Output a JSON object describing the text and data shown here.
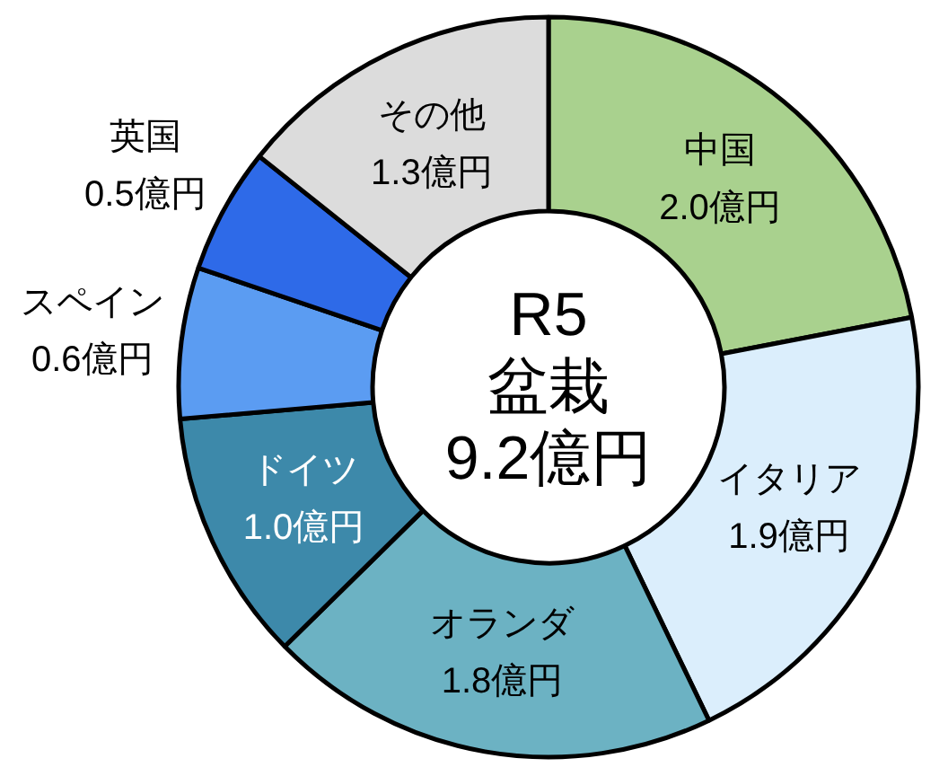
{
  "chart_data": {
    "type": "donut",
    "categories": [
      "中国",
      "イタリア",
      "オランダ",
      "ドイツ",
      "スペイン",
      "英国",
      "その他"
    ],
    "values": [
      2.0,
      1.9,
      1.8,
      1.0,
      0.6,
      0.5,
      1.3
    ],
    "colors": [
      "#a9d18e",
      "#dbeefc",
      "#6cb2c3",
      "#3d89aa",
      "#5b9cf2",
      "#2e6ae8",
      "#dcdcdc"
    ],
    "value_labels": [
      "2.0億円",
      "1.9億円",
      "1.8億円",
      "1.0億円",
      "0.6億円",
      "0.5億円",
      "1.3億円"
    ],
    "annotations": [
      "R5",
      "盆栽",
      "9.2億円"
    ]
  }
}
